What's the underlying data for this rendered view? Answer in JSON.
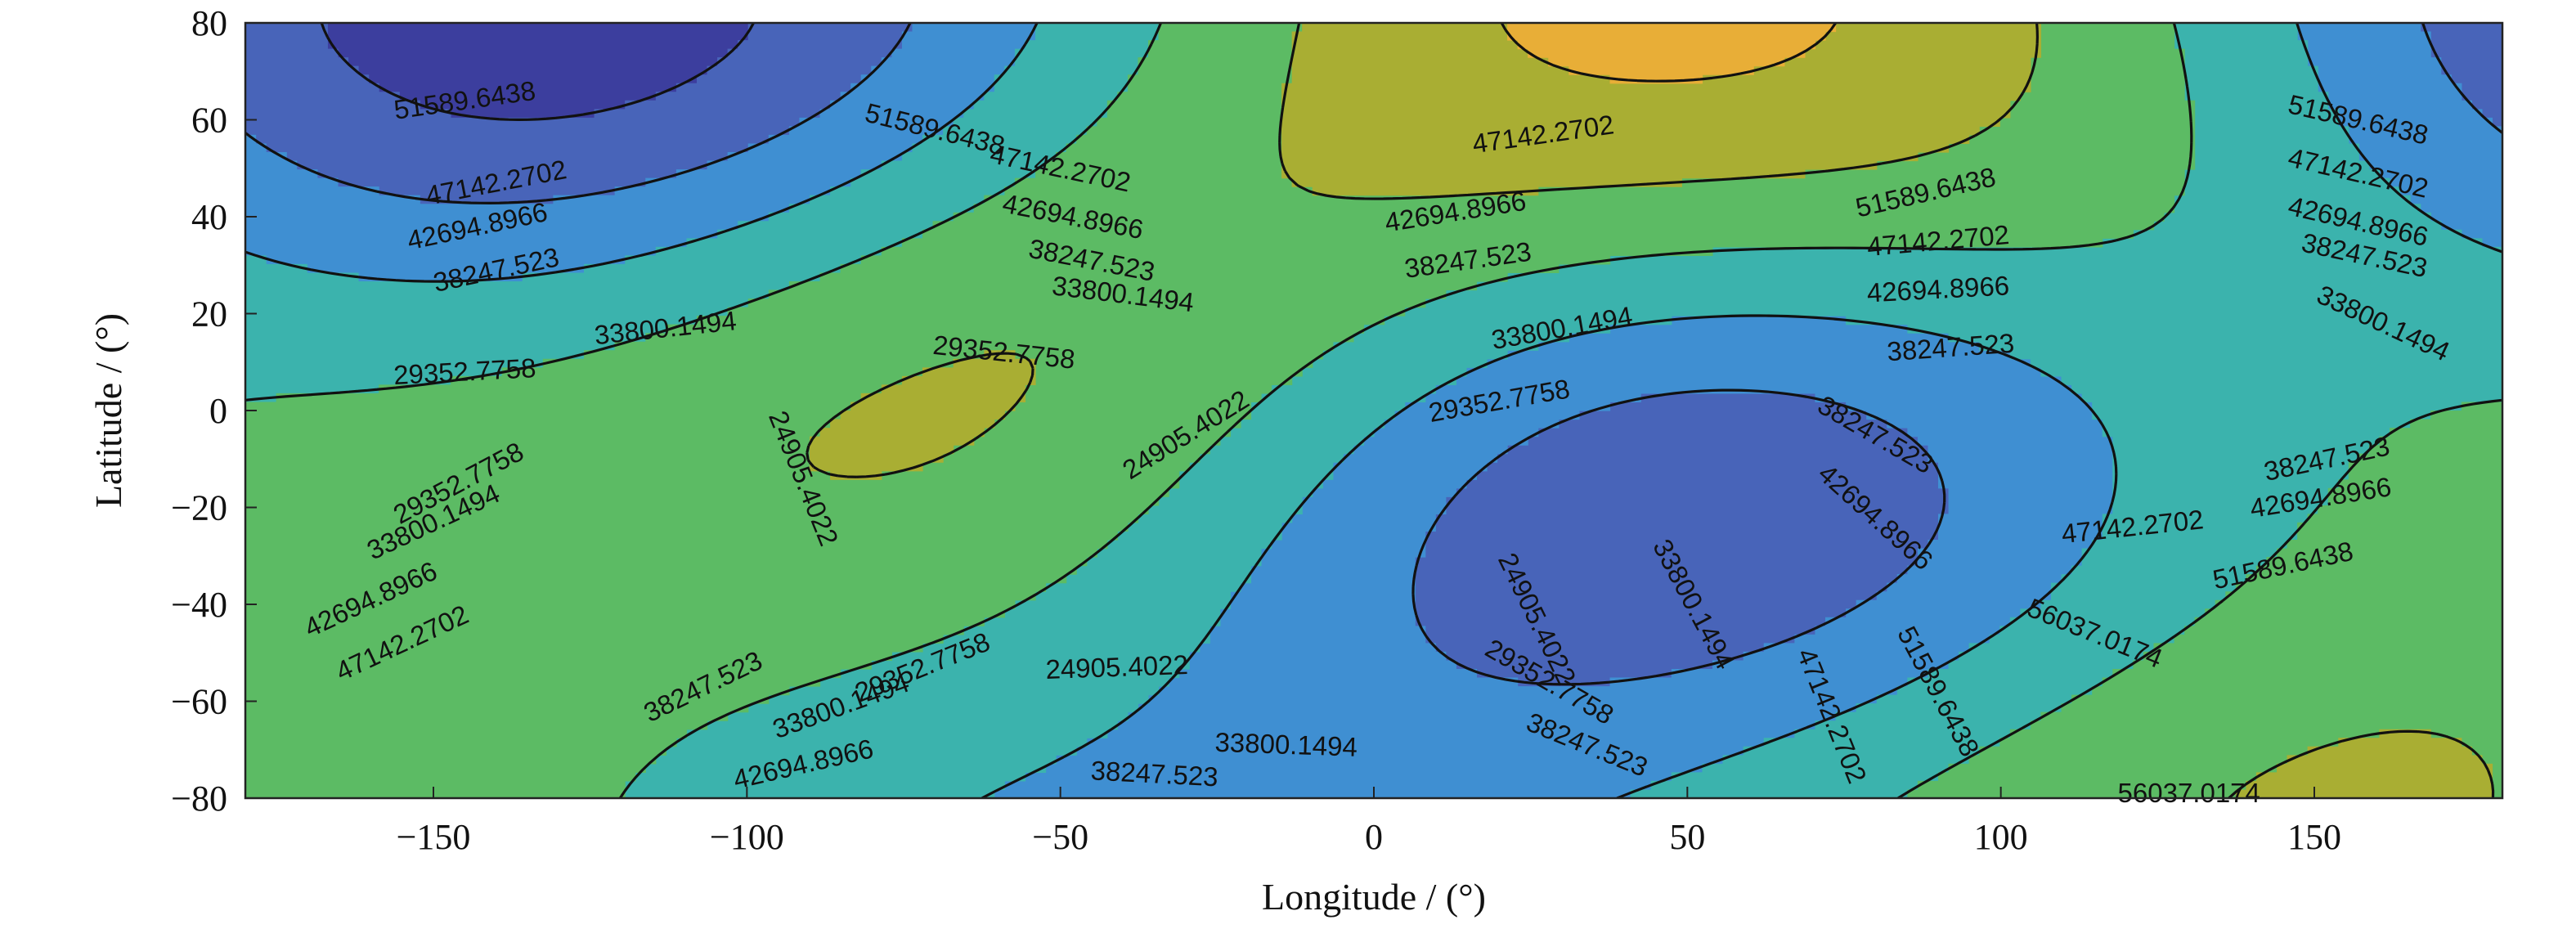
{
  "chart_data": {
    "type": "heatmap",
    "subtype": "filled-contour",
    "title": "",
    "xlabel": "Longitude / (°)",
    "ylabel": "Latitude / (°)",
    "xlim": [
      -180,
      180
    ],
    "ylim": [
      -80,
      80
    ],
    "x_ticks": [
      -150,
      -100,
      -50,
      0,
      50,
      100,
      150
    ],
    "x_tick_labels": [
      "−150",
      "−100",
      "−50",
      "0",
      "50",
      "100",
      "150"
    ],
    "y_ticks": [
      80,
      60,
      40,
      20,
      0,
      -20,
      -40,
      -60,
      -80
    ],
    "y_tick_labels": [
      "80",
      "60",
      "40",
      "20",
      "0",
      "−20",
      "−40",
      "−60",
      "−80"
    ],
    "grid": false,
    "colorbar": false,
    "contour_levels": [
      24905.4022,
      29352.7758,
      33800.1494,
      38247.523,
      42694.8966,
      47142.2702,
      51589.6438,
      56037.0174
    ],
    "fill_colors": [
      "#3a3392",
      "#3c3e9e",
      "#4864b9",
      "#3f8fd2",
      "#3bb3ad",
      "#5cbb64",
      "#a9ae33",
      "#e8ae37",
      "#d5e03a"
    ],
    "line_color": "#111111",
    "field_model": "cosine-sine series evaluated over the grid",
    "contour_labels": [
      {
        "text": "51589.6438",
        "lon": -145,
        "lat": 64,
        "rot": 8
      },
      {
        "text": "51589.6438",
        "lon": -70,
        "lat": 58,
        "rot": -14
      },
      {
        "text": "47142.2702",
        "lon": -50,
        "lat": 50,
        "rot": -12
      },
      {
        "text": "47142.2702",
        "lon": 27,
        "lat": 57,
        "rot": 8
      },
      {
        "text": "51589.6438",
        "lon": 88,
        "lat": 45,
        "rot": 13
      },
      {
        "text": "51589.6438",
        "lon": 157,
        "lat": 60,
        "rot": -13
      },
      {
        "text": "47142.2702",
        "lon": -140,
        "lat": 47,
        "rot": 11
      },
      {
        "text": "47142.2702",
        "lon": 90,
        "lat": 35,
        "rot": 5
      },
      {
        "text": "47142.2702",
        "lon": 157,
        "lat": 49,
        "rot": -13
      },
      {
        "text": "42694.8966",
        "lon": -143,
        "lat": 38,
        "rot": 12
      },
      {
        "text": "42694.8966",
        "lon": -48,
        "lat": 40,
        "rot": -11
      },
      {
        "text": "42694.8966",
        "lon": 13,
        "lat": 41,
        "rot": 9
      },
      {
        "text": "42694.8966",
        "lon": 90,
        "lat": 25,
        "rot": 3
      },
      {
        "text": "42694.8966",
        "lon": 157,
        "lat": 39,
        "rot": -13
      },
      {
        "text": "38247.523",
        "lon": -140,
        "lat": 29,
        "rot": 12
      },
      {
        "text": "38247.523",
        "lon": -45,
        "lat": 31,
        "rot": -11
      },
      {
        "text": "38247.523",
        "lon": 15,
        "lat": 31,
        "rot": 8
      },
      {
        "text": "38247.523",
        "lon": 92,
        "lat": 13,
        "rot": 4
      },
      {
        "text": "38247.523",
        "lon": 158,
        "lat": 32,
        "rot": -12
      },
      {
        "text": "33800.1494",
        "lon": -113,
        "lat": 17,
        "rot": 6
      },
      {
        "text": "33800.1494",
        "lon": -40,
        "lat": 24,
        "rot": -7
      },
      {
        "text": "33800.1494",
        "lon": 30,
        "lat": 17,
        "rot": 10
      },
      {
        "text": "33800.1494",
        "lon": 161,
        "lat": 18,
        "rot": -25
      },
      {
        "text": "29352.7758",
        "lon": -145,
        "lat": 8,
        "rot": 3
      },
      {
        "text": "29352.7758",
        "lon": -59,
        "lat": 12,
        "rot": -6
      },
      {
        "text": "29352.7758",
        "lon": 20,
        "lat": 2,
        "rot": 10
      },
      {
        "text": "24905.4022",
        "lon": -91,
        "lat": -14,
        "rot": -68
      },
      {
        "text": "24905.4022",
        "lon": -30,
        "lat": -5,
        "rot": 32
      },
      {
        "text": "38247.523",
        "lon": 80,
        "lat": -5,
        "rot": -30
      },
      {
        "text": "38247.523",
        "lon": 152,
        "lat": -10,
        "rot": 12
      },
      {
        "text": "29352.7758",
        "lon": -146,
        "lat": -15,
        "rot": 28
      },
      {
        "text": "42694.8966",
        "lon": 80,
        "lat": -22,
        "rot": -42
      },
      {
        "text": "42694.8966",
        "lon": 151,
        "lat": -18,
        "rot": 9
      },
      {
        "text": "33800.1494",
        "lon": -150,
        "lat": -23,
        "rot": 25
      },
      {
        "text": "47142.2702",
        "lon": 121,
        "lat": -24,
        "rot": 6
      },
      {
        "text": "33800.1494",
        "lon": 51,
        "lat": -40,
        "rot": -62
      },
      {
        "text": "51589.6438",
        "lon": 145,
        "lat": -32,
        "rot": 12
      },
      {
        "text": "42694.8966",
        "lon": -160,
        "lat": -39,
        "rot": 25
      },
      {
        "text": "56037.0174",
        "lon": 115,
        "lat": -46,
        "rot": -22
      },
      {
        "text": "47142.2702",
        "lon": -155,
        "lat": -48,
        "rot": 25
      },
      {
        "text": "24905.4022",
        "lon": 26,
        "lat": -43,
        "rot": -64
      },
      {
        "text": "29352.7758",
        "lon": -72,
        "lat": -53,
        "rot": 22
      },
      {
        "text": "38247.523",
        "lon": -107,
        "lat": -57,
        "rot": 26
      },
      {
        "text": "24905.4022",
        "lon": -41,
        "lat": -53,
        "rot": 2
      },
      {
        "text": "29352.7758",
        "lon": 28,
        "lat": -56,
        "rot": -30
      },
      {
        "text": "33800.1494",
        "lon": -85,
        "lat": -61,
        "rot": 20
      },
      {
        "text": "51589.6438",
        "lon": 90,
        "lat": -58,
        "rot": -62
      },
      {
        "text": "47142.2702",
        "lon": 73,
        "lat": -63,
        "rot": -68
      },
      {
        "text": "33800.1494",
        "lon": -14,
        "lat": -69,
        "rot": -2
      },
      {
        "text": "38247.523",
        "lon": 34,
        "lat": -69,
        "rot": -22
      },
      {
        "text": "42694.8966",
        "lon": -91,
        "lat": -73,
        "rot": 13
      },
      {
        "text": "38247.523",
        "lon": -35,
        "lat": -75,
        "rot": -3
      },
      {
        "text": "56037.0174",
        "lon": 130,
        "lat": -79,
        "rot": 0
      }
    ]
  }
}
